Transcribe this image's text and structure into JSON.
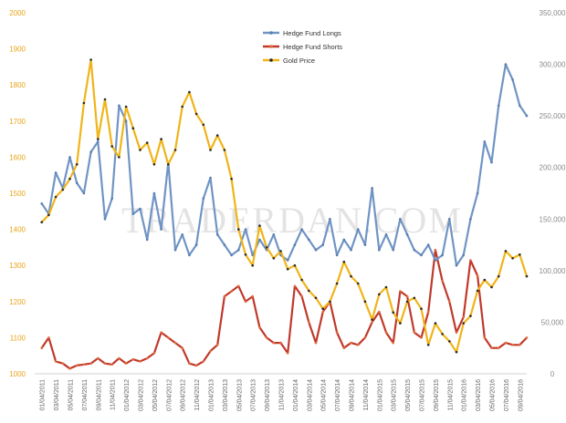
{
  "chart_data": {
    "type": "line",
    "title": "",
    "watermark": "TRADERDAN.COM",
    "left_axis": {
      "ticks": [
        1000,
        1100,
        1200,
        1300,
        1400,
        1500,
        1600,
        1700,
        1800,
        1900,
        2000
      ],
      "range": [
        1000,
        2000
      ],
      "color": "#e8a317"
    },
    "right_axis": {
      "ticks": [
        "0",
        "50,000",
        "100,000",
        "150,000",
        "200,000",
        "250,000",
        "300,000",
        "350,000"
      ],
      "values": [
        0,
        50000,
        100000,
        150000,
        200000,
        250000,
        300000,
        350000
      ],
      "range": [
        0,
        350000
      ],
      "color": "#8a8a8a"
    },
    "x_labels": [
      "01/04/2011",
      "03/04/2011",
      "05/04/2011",
      "07/04/2011",
      "09/04/2011",
      "11/04/2011",
      "01/04/2012",
      "03/04/2012",
      "05/04/2012",
      "07/04/2012",
      "09/04/2012",
      "11/04/2012",
      "01/04/2013",
      "03/04/2013",
      "05/04/2013",
      "07/04/2013",
      "09/04/2013",
      "11/04/2013",
      "01/04/2014",
      "03/04/2014",
      "05/04/2014",
      "07/04/2014",
      "09/04/2014",
      "11/04/2014",
      "01/04/2015",
      "03/04/2015",
      "05/04/2015",
      "07/04/2015",
      "09/04/2015",
      "11/04/2015",
      "01/04/2016",
      "03/04/2016",
      "05/04/2016",
      "07/04/2016",
      "09/04/2016"
    ],
    "series": [
      {
        "name": "Hedge Fund Longs",
        "axis": "right",
        "color": "#7094c4",
        "marker": "#5a7fb0",
        "x": [
          0,
          0.5,
          1,
          1.5,
          2,
          2.5,
          3,
          3.5,
          4,
          4.5,
          5,
          5.5,
          6,
          6.5,
          7,
          7.5,
          8,
          8.5,
          9,
          9.5,
          10,
          10.5,
          11,
          11.5,
          12,
          12.5,
          13,
          13.5,
          14,
          14.5,
          15,
          15.5,
          16,
          16.5,
          17,
          17.5,
          18,
          18.5,
          19,
          19.5,
          20,
          20.5,
          21,
          21.5,
          22,
          22.5,
          23,
          23.5,
          24,
          24.5,
          25,
          25.5,
          26,
          26.5,
          27,
          27.5,
          28,
          28.5,
          29,
          29.5,
          30,
          30.5,
          31,
          31.5,
          32,
          32.5,
          33,
          33.5,
          34,
          34.5
        ],
        "values": [
          165000,
          155000,
          195000,
          180000,
          210000,
          185000,
          175000,
          215000,
          225000,
          150000,
          170000,
          260000,
          245000,
          155000,
          160000,
          130000,
          175000,
          140000,
          205000,
          120000,
          135000,
          115000,
          125000,
          170000,
          190000,
          135000,
          125000,
          115000,
          120000,
          140000,
          115000,
          130000,
          120000,
          135000,
          115000,
          110000,
          125000,
          140000,
          130000,
          120000,
          125000,
          150000,
          115000,
          130000,
          120000,
          140000,
          125000,
          180000,
          120000,
          135000,
          120000,
          150000,
          135000,
          120000,
          115000,
          125000,
          110000,
          115000,
          150000,
          105000,
          115000,
          150000,
          175000,
          225000,
          205000,
          260000,
          300000,
          285000,
          260000,
          250000
        ],
        "width": 2.2
      },
      {
        "name": "Hedge Fund Shorts",
        "axis": "right",
        "color": "#c0392b",
        "marker": "#e26b3a",
        "x": [
          0,
          0.5,
          1,
          1.5,
          2,
          2.5,
          3,
          3.5,
          4,
          4.5,
          5,
          5.5,
          6,
          6.5,
          7,
          7.5,
          8,
          8.5,
          9,
          9.5,
          10,
          10.5,
          11,
          11.5,
          12,
          12.5,
          13,
          13.5,
          14,
          14.5,
          15,
          15.5,
          16,
          16.5,
          17,
          17.5,
          18,
          18.5,
          19,
          19.5,
          20,
          20.5,
          21,
          21.5,
          22,
          22.5,
          23,
          23.5,
          24,
          24.5,
          25,
          25.5,
          26,
          26.5,
          27,
          27.5,
          28,
          28.5,
          29,
          29.5,
          30,
          30.5,
          31,
          31.5,
          32,
          32.5,
          33,
          33.5,
          34,
          34.5
        ],
        "values": [
          25000,
          35000,
          12000,
          10000,
          5000,
          8000,
          9000,
          10000,
          15000,
          10000,
          9000,
          15000,
          10000,
          14000,
          12000,
          15000,
          20000,
          40000,
          35000,
          30000,
          25000,
          10000,
          8000,
          12000,
          22000,
          28000,
          75000,
          80000,
          85000,
          70000,
          75000,
          45000,
          35000,
          30000,
          30000,
          20000,
          85000,
          75000,
          50000,
          30000,
          60000,
          70000,
          40000,
          25000,
          30000,
          28000,
          35000,
          50000,
          60000,
          40000,
          30000,
          80000,
          75000,
          40000,
          35000,
          60000,
          120000,
          90000,
          70000,
          40000,
          55000,
          110000,
          95000,
          35000,
          25000,
          25000,
          30000,
          28000,
          28000,
          35000
        ],
        "width": 2.2
      },
      {
        "name": "Gold Price",
        "axis": "left",
        "color": "#f0b419",
        "marker": "#2a2a2a",
        "x": [
          0,
          0.5,
          1,
          1.5,
          2,
          2.5,
          3,
          3.5,
          4,
          4.5,
          5,
          5.5,
          6,
          6.5,
          7,
          7.5,
          8,
          8.5,
          9,
          9.5,
          10,
          10.5,
          11,
          11.5,
          12,
          12.5,
          13,
          13.5,
          14,
          14.5,
          15,
          15.5,
          16,
          16.5,
          17,
          17.5,
          18,
          18.5,
          19,
          19.5,
          20,
          20.5,
          21,
          21.5,
          22,
          22.5,
          23,
          23.5,
          24,
          24.5,
          25,
          25.5,
          26,
          26.5,
          27,
          27.5,
          28,
          28.5,
          29,
          29.5,
          30,
          30.5,
          31,
          31.5,
          32,
          32.5,
          33,
          33.5,
          34,
          34.5
        ],
        "values": [
          1420,
          1440,
          1490,
          1510,
          1540,
          1580,
          1750,
          1870,
          1650,
          1760,
          1630,
          1600,
          1740,
          1680,
          1620,
          1640,
          1580,
          1650,
          1580,
          1620,
          1740,
          1780,
          1720,
          1690,
          1620,
          1660,
          1620,
          1540,
          1400,
          1330,
          1300,
          1410,
          1350,
          1320,
          1340,
          1290,
          1300,
          1260,
          1230,
          1210,
          1180,
          1200,
          1250,
          1310,
          1270,
          1250,
          1200,
          1150,
          1220,
          1240,
          1170,
          1140,
          1200,
          1210,
          1180,
          1080,
          1140,
          1110,
          1090,
          1060,
          1140,
          1160,
          1230,
          1260,
          1240,
          1270,
          1340,
          1320,
          1330,
          1270
        ],
        "width": 2.2
      }
    ],
    "legend": {
      "placement": "top-center",
      "entries": [
        "Hedge Fund Longs",
        "Hedge Fund Shorts",
        "Gold Price"
      ]
    }
  }
}
